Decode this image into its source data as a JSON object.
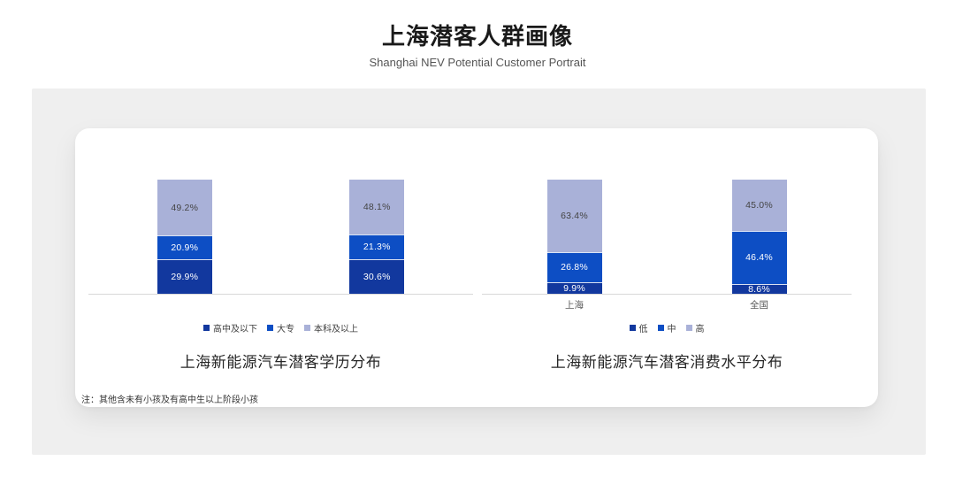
{
  "header": {
    "title": "上海潜客人群画像",
    "subtitle": "Shanghai NEV Potential Customer Portrait"
  },
  "footnote": "注：其他含未有小孩及有高中生以上阶段小孩",
  "colors": {
    "panel_bg": "#efefef",
    "card_bg": "#ffffff",
    "axis_line": "#d9d9d9",
    "series_dark_blue": "#12389e",
    "series_blue": "#0d4ec4",
    "series_lavender": "#a9b1d8"
  },
  "chart_data": [
    {
      "type": "bar",
      "subtype": "stacked-percent",
      "title": "上海新能源汽车潜客学历分布",
      "categories": [
        "",
        ""
      ],
      "series": [
        {
          "name": "高中及以下",
          "values": [
            29.9,
            30.6
          ],
          "color": "#12389e",
          "label_color": "#ffffff"
        },
        {
          "name": "大专",
          "values": [
            20.9,
            21.3
          ],
          "color": "#0d4ec4",
          "label_color": "#ffffff"
        },
        {
          "name": "本科及以上",
          "values": [
            49.2,
            48.1
          ],
          "color": "#a9b1d8",
          "label_color": "#444444"
        }
      ],
      "stack_order": "bottom-to-top",
      "ylim": [
        0,
        100
      ],
      "value_suffix": "%",
      "value_decimals": 1,
      "legend_position": "bottom",
      "grid": false
    },
    {
      "type": "bar",
      "subtype": "stacked-percent",
      "title": "上海新能源汽车潜客消费水平分布",
      "categories": [
        "上海",
        "全国"
      ],
      "series": [
        {
          "name": "低",
          "values": [
            9.9,
            8.6
          ],
          "color": "#12389e",
          "label_color": "#ffffff"
        },
        {
          "name": "中",
          "values": [
            26.8,
            46.4
          ],
          "color": "#0d4ec4",
          "label_color": "#ffffff"
        },
        {
          "name": "高",
          "values": [
            63.4,
            45.0
          ],
          "color": "#a9b1d8",
          "label_color": "#444444"
        }
      ],
      "stack_order": "bottom-to-top",
      "ylim": [
        0,
        100
      ],
      "value_suffix": "%",
      "value_decimals": 1,
      "legend_position": "bottom",
      "grid": false
    }
  ]
}
